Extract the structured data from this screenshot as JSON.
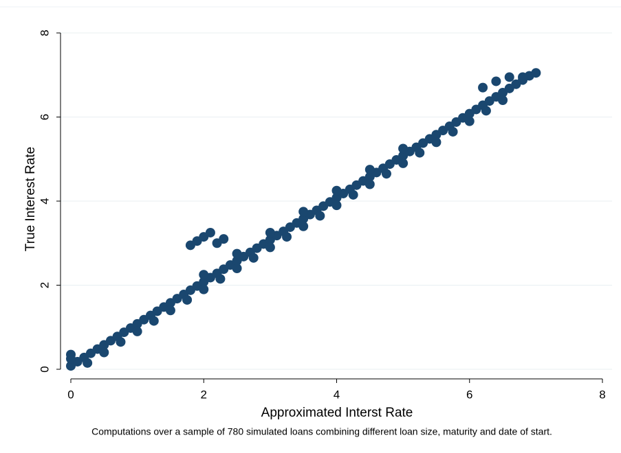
{
  "chart_data": {
    "type": "scatter",
    "xlabel": "Approximated Interst Rate",
    "ylabel": "True Interest Rate",
    "note": "Computations over a sample of 780 simulated loans combining different loan size, maturity and date of start.",
    "color": "#1a476f",
    "grid": true,
    "xlim": [
      0,
      8
    ],
    "ylim": [
      0,
      8
    ],
    "xticks": [
      0,
      2,
      4,
      6,
      8
    ],
    "yticks": [
      0,
      2,
      4,
      6,
      8
    ],
    "x": [
      0,
      0.1,
      0.2,
      0.3,
      0.4,
      0.5,
      0.6,
      0.7,
      0.8,
      0.9,
      1,
      1.1,
      1.2,
      1.3,
      1.4,
      1.5,
      1.6,
      1.7,
      1.8,
      1.9,
      2,
      2.1,
      2.2,
      2.3,
      2.4,
      2.5,
      2.6,
      2.7,
      2.8,
      2.9,
      3,
      3.1,
      3.2,
      3.3,
      3.4,
      3.5,
      3.6,
      3.7,
      3.8,
      3.9,
      4,
      4.1,
      4.2,
      4.3,
      4.4,
      4.5,
      4.6,
      4.7,
      4.8,
      4.9,
      5,
      5.1,
      5.2,
      5.3,
      5.4,
      5.5,
      5.6,
      5.7,
      5.8,
      5.9,
      6,
      6.1,
      6.2,
      6.3,
      6.4,
      6.5,
      6.6,
      6.7,
      6.8,
      6.9,
      7,
      0.25,
      0.5,
      0.75,
      1,
      1.25,
      1.5,
      1.75,
      2,
      2.25,
      2.5,
      2.75,
      3,
      3.25,
      3.5,
      3.75,
      4,
      4.25,
      4.5,
      4.75,
      5,
      5.25,
      5.5,
      5.75,
      6,
      6.25,
      6.5,
      2,
      2.5,
      3,
      3.5,
      4,
      4.5,
      5,
      1.8,
      1.9,
      2,
      2.1,
      2.2,
      2.3,
      6.2,
      6.4,
      6.6,
      6.8,
      0,
      0
    ],
    "y": [
      0.08,
      0.18,
      0.28,
      0.38,
      0.48,
      0.58,
      0.68,
      0.78,
      0.88,
      0.98,
      1.08,
      1.18,
      1.28,
      1.38,
      1.48,
      1.58,
      1.68,
      1.78,
      1.88,
      1.98,
      2.08,
      2.18,
      2.28,
      2.38,
      2.48,
      2.58,
      2.68,
      2.78,
      2.88,
      2.98,
      3.08,
      3.18,
      3.28,
      3.38,
      3.48,
      3.58,
      3.68,
      3.78,
      3.88,
      3.98,
      4.08,
      4.18,
      4.28,
      4.38,
      4.48,
      4.58,
      4.68,
      4.78,
      4.88,
      4.98,
      5.08,
      5.18,
      5.28,
      5.38,
      5.48,
      5.58,
      5.68,
      5.78,
      5.88,
      5.98,
      6.08,
      6.18,
      6.28,
      6.38,
      6.48,
      6.58,
      6.68,
      6.78,
      6.88,
      6.98,
      7.05,
      0.15,
      0.4,
      0.65,
      0.9,
      1.15,
      1.4,
      1.65,
      1.9,
      2.15,
      2.4,
      2.65,
      2.9,
      3.15,
      3.4,
      3.65,
      3.9,
      4.15,
      4.4,
      4.65,
      4.9,
      5.15,
      5.4,
      5.65,
      5.9,
      6.15,
      6.4,
      2.25,
      2.75,
      3.25,
      3.75,
      4.25,
      4.75,
      5.25,
      2.95,
      3.05,
      3.15,
      3.25,
      3.0,
      3.1,
      6.7,
      6.85,
      6.95,
      6.95,
      0.35,
      0.25
    ]
  }
}
